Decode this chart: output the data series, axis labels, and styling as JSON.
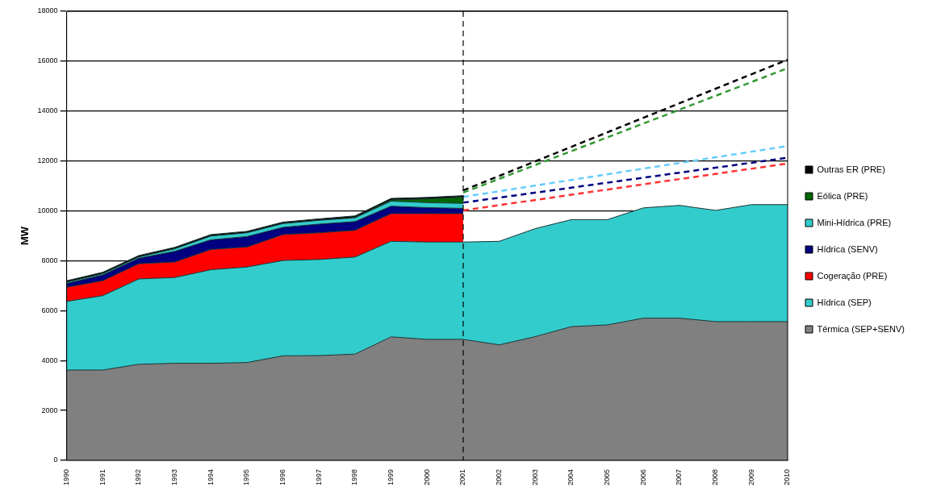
{
  "chart_data": {
    "type": "area",
    "stacked": true,
    "ylabel": "MW",
    "categories": [
      "1990",
      "1991",
      "1992",
      "1993",
      "1994",
      "1995",
      "1996",
      "1997",
      "1998",
      "1999",
      "2000",
      "2001",
      "2002",
      "2003",
      "2004",
      "2005",
      "2006",
      "2007",
      "2008",
      "2009",
      "2010"
    ],
    "ylim": [
      0,
      18000
    ],
    "yticks": [
      0,
      2000,
      4000,
      6000,
      8000,
      10000,
      12000,
      14000,
      16000,
      18000
    ],
    "grid": "y",
    "legend": "right",
    "marker": "none",
    "ref_lines": [
      {
        "axis": "x",
        "value": "2001",
        "line_style": "dashed",
        "color": "#000000"
      }
    ],
    "series": [
      {
        "name": "Térmica (SEP+SENV)",
        "color": "#808080",
        "values": [
          3620,
          3620,
          3850,
          3890,
          3890,
          3920,
          4190,
          4200,
          4260,
          4950,
          4850,
          4850,
          4630,
          4960,
          5360,
          5430,
          5700,
          5700,
          5560,
          5560,
          5560
        ]
      },
      {
        "name": "Hídrica (SEP)",
        "color": "#33cccc",
        "values": [
          2750,
          2980,
          3420,
          3440,
          3750,
          3830,
          3820,
          3850,
          3890,
          3830,
          3900,
          3900,
          4150,
          4330,
          4290,
          4220,
          4420,
          4520,
          4460,
          4690,
          4690
        ]
      },
      {
        "name": "Cogeração (PRE)",
        "color": "#ff0000",
        "values": [
          570,
          600,
          610,
          620,
          810,
          800,
          1040,
          1070,
          1070,
          1110,
          1140,
          1140,
          null,
          null,
          null,
          null,
          null,
          null,
          null,
          null,
          null
        ]
      },
      {
        "name": "Hídrica (SENV)",
        "color": "#000080",
        "values": [
          150,
          230,
          220,
          430,
          390,
          420,
          290,
          350,
          350,
          300,
          240,
          210,
          null,
          null,
          null,
          null,
          null,
          null,
          null,
          null,
          null
        ]
      },
      {
        "name": "Mini-Hídrica (PRE)",
        "color": "#33cccc",
        "values": [
          50,
          50,
          50,
          100,
          150,
          150,
          150,
          150,
          150,
          200,
          200,
          200,
          null,
          null,
          null,
          null,
          null,
          null,
          null,
          null,
          null
        ]
      },
      {
        "name": "Eólica (PRE)",
        "color": "#006600",
        "values": [
          0,
          0,
          0,
          0,
          0,
          0,
          0,
          0,
          20,
          50,
          150,
          250,
          null,
          null,
          null,
          null,
          null,
          null,
          null,
          null,
          null
        ]
      },
      {
        "name": "Outras ER (PRE)",
        "color": "#000000",
        "values": [
          60,
          60,
          60,
          60,
          60,
          60,
          60,
          60,
          60,
          60,
          60,
          60,
          null,
          null,
          null,
          null,
          null,
          null,
          null,
          null,
          null
        ]
      },
      {
        "type": "line",
        "line_style": "dashed",
        "color": "#ff3333",
        "values": [
          null,
          null,
          null,
          null,
          null,
          null,
          null,
          null,
          null,
          null,
          null,
          10020,
          null,
          null,
          null,
          null,
          null,
          null,
          null,
          null,
          11900
        ]
      },
      {
        "type": "line",
        "line_style": "dashed",
        "color": "#000080",
        "values": [
          null,
          null,
          null,
          null,
          null,
          null,
          null,
          null,
          null,
          null,
          null,
          10330,
          null,
          null,
          null,
          null,
          null,
          null,
          null,
          null,
          12130
        ]
      },
      {
        "type": "line",
        "line_style": "dashed",
        "color": "#66ccff",
        "values": [
          null,
          null,
          null,
          null,
          null,
          null,
          null,
          null,
          null,
          null,
          null,
          10560,
          null,
          null,
          null,
          null,
          null,
          null,
          null,
          null,
          12600
        ]
      },
      {
        "type": "line",
        "line_style": "dashed",
        "color": "#339933",
        "values": [
          null,
          null,
          null,
          null,
          null,
          null,
          null,
          null,
          null,
          null,
          null,
          10730,
          null,
          null,
          null,
          null,
          null,
          null,
          null,
          null,
          15720
        ]
      },
      {
        "type": "line",
        "line_style": "dashed",
        "color": "#000000",
        "values": [
          null,
          null,
          null,
          null,
          null,
          null,
          null,
          null,
          null,
          null,
          null,
          10820,
          null,
          null,
          null,
          null,
          null,
          null,
          null,
          null,
          16060
        ]
      }
    ]
  }
}
